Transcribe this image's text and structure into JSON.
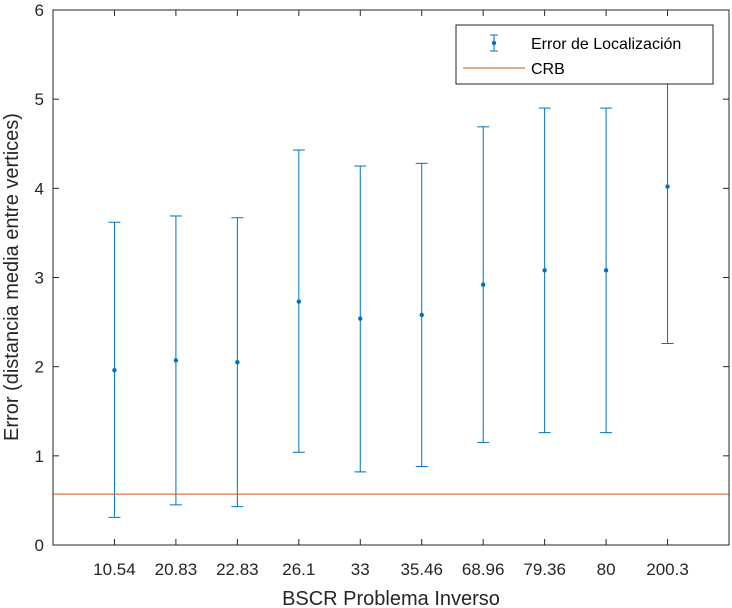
{
  "chart_data": {
    "type": "scatter",
    "title": "",
    "xlabel": "BSCR Problema Inverso",
    "ylabel": "Error (distancia media entre vertices)",
    "categories": [
      "10.54",
      "20.83",
      "22.83",
      "26.1",
      "33",
      "35.46",
      "68.96",
      "79.36",
      "80",
      "200.3"
    ],
    "ylim": [
      0,
      6
    ],
    "yticks": [
      "0",
      "1",
      "2",
      "3",
      "4",
      "5",
      "6"
    ],
    "grid": false,
    "legend_position": "top-right",
    "series": [
      {
        "name": "Error de Localización",
        "kind": "errorbar",
        "color": "#0072BD",
        "values": [
          1.96,
          2.07,
          2.05,
          2.73,
          2.54,
          2.58,
          2.92,
          3.08,
          3.08,
          4.02
        ],
        "lower": [
          0.31,
          0.45,
          0.43,
          1.04,
          0.82,
          0.88,
          1.15,
          1.26,
          1.26,
          2.26
        ],
        "upper": [
          3.62,
          3.69,
          3.67,
          4.43,
          4.25,
          4.28,
          4.69,
          4.9,
          4.9,
          5.78
        ]
      },
      {
        "name": "CRB",
        "kind": "hline",
        "color": "#D95319",
        "value": 0.57
      }
    ]
  }
}
